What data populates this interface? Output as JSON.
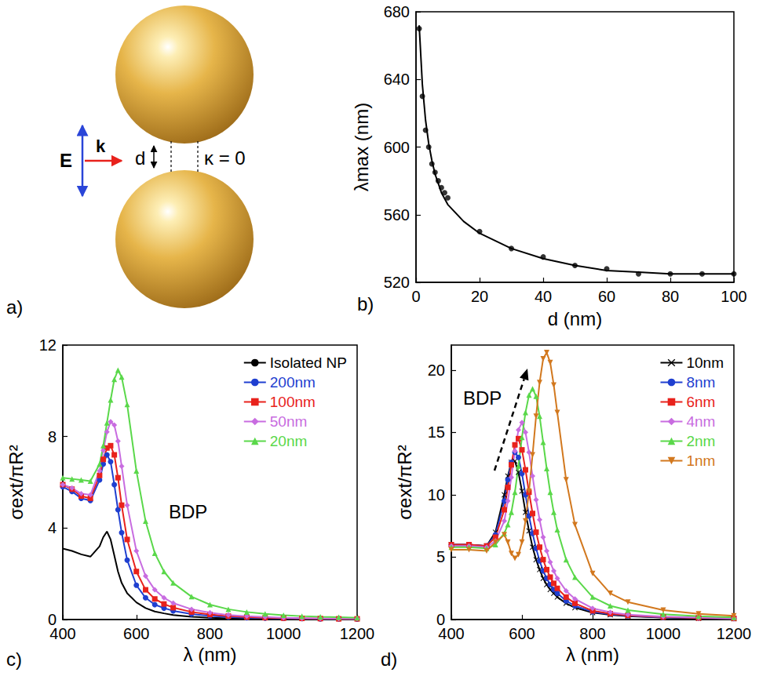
{
  "diagram": {
    "panel": "a)",
    "field": "E",
    "wavevector": "k",
    "gap": "d",
    "plane": "κ = 0"
  },
  "chart_data": [
    {
      "type": "scatter",
      "panel": "b)",
      "x_label": "d (nm)",
      "y_label": "λmax (nm)",
      "xlim": [
        0,
        100
      ],
      "ylim": [
        520,
        680
      ],
      "xticks": [
        0,
        20,
        40,
        60,
        80,
        100
      ],
      "yticks": [
        520,
        560,
        600,
        640,
        680
      ],
      "grid": false,
      "series": [
        {
          "type": "scatter",
          "marker": "circle",
          "color": "#000000",
          "x": [
            1,
            2,
            3,
            4,
            5,
            6,
            7,
            8,
            9,
            10,
            20,
            30,
            40,
            50,
            60,
            70,
            80,
            90,
            100
          ],
          "values": [
            670,
            630,
            610,
            600,
            590,
            585,
            580,
            576,
            573,
            570,
            550,
            540,
            535,
            530,
            528,
            525,
            525,
            525,
            525
          ]
        },
        {
          "type": "line",
          "marker": "none",
          "color": "#000000",
          "x": [
            1,
            2,
            3,
            4,
            5,
            6,
            8,
            10,
            15,
            20,
            30,
            40,
            50,
            60,
            70,
            80,
            90,
            100
          ],
          "values": [
            672,
            637,
            616,
            602,
            592,
            584,
            573,
            566,
            556,
            549,
            540,
            534,
            530,
            527,
            526,
            525,
            525,
            525
          ]
        }
      ]
    },
    {
      "type": "line",
      "panel": "c)",
      "x_label": "λ (nm)",
      "y_label": "σext/πR²",
      "annotations": [
        "BDP"
      ],
      "xlim": [
        400,
        1200
      ],
      "ylim": [
        0,
        12
      ],
      "xticks": [
        400,
        600,
        800,
        1000,
        1200
      ],
      "yticks": [
        0,
        4,
        8,
        12
      ],
      "grid": false,
      "legend": "upper right",
      "x": [
        400,
        425,
        450,
        475,
        500,
        510,
        520,
        530,
        540,
        550,
        560,
        575,
        600,
        625,
        650,
        675,
        700,
        750,
        800,
        850,
        900,
        950,
        1000,
        1050,
        1100,
        1150,
        1200
      ],
      "series": [
        {
          "name": "Isolated NP",
          "color": "#000000",
          "marker": "none",
          "values": [
            3.1,
            3.0,
            2.85,
            2.75,
            3.2,
            3.6,
            3.85,
            3.5,
            2.8,
            2.1,
            1.6,
            1.15,
            0.75,
            0.5,
            0.35,
            0.27,
            0.2,
            0.12,
            0.08,
            0.05,
            0.04,
            0.03,
            0.02,
            0.02,
            0.01,
            0.01,
            0.01
          ]
        },
        {
          "name": "200nm",
          "color": "#1f3fd0",
          "marker": "circle",
          "values": [
            5.8,
            5.6,
            5.3,
            5.2,
            6.1,
            6.8,
            7.2,
            6.9,
            5.9,
            4.8,
            3.8,
            2.6,
            1.5,
            0.95,
            0.65,
            0.5,
            0.38,
            0.24,
            0.16,
            0.11,
            0.08,
            0.06,
            0.05,
            0.04,
            0.03,
            0.03,
            0.02
          ]
        },
        {
          "name": "100nm",
          "color": "#e8221c",
          "marker": "square",
          "values": [
            5.9,
            5.7,
            5.4,
            5.3,
            6.3,
            7.0,
            7.5,
            7.6,
            7.2,
            6.2,
            5.0,
            3.5,
            2.1,
            1.3,
            0.9,
            0.68,
            0.52,
            0.33,
            0.22,
            0.15,
            0.11,
            0.08,
            0.06,
            0.05,
            0.04,
            0.03,
            0.03
          ]
        },
        {
          "name": "50nm",
          "color": "#c86ce0",
          "marker": "diamond",
          "values": [
            5.9,
            5.75,
            5.5,
            5.45,
            6.5,
            7.4,
            8.2,
            8.65,
            8.5,
            7.8,
            6.7,
            5.0,
            3.0,
            1.9,
            1.3,
            0.95,
            0.72,
            0.45,
            0.3,
            0.2,
            0.15,
            0.11,
            0.08,
            0.06,
            0.05,
            0.04,
            0.04
          ]
        },
        {
          "name": "20nm",
          "color": "#5ad84a",
          "marker": "triangle",
          "values": [
            6.2,
            6.15,
            6.1,
            6.05,
            6.8,
            7.6,
            8.6,
            9.6,
            10.5,
            10.9,
            10.6,
            9.4,
            6.5,
            4.3,
            2.9,
            2.1,
            1.6,
            1.0,
            0.65,
            0.45,
            0.33,
            0.25,
            0.19,
            0.15,
            0.12,
            0.1,
            0.08
          ]
        }
      ]
    },
    {
      "type": "line",
      "panel": "d)",
      "x_label": "λ (nm)",
      "y_label": "σext/πR²",
      "annotations": [
        "BDP"
      ],
      "xlim": [
        400,
        1200
      ],
      "ylim": [
        0,
        22
      ],
      "xticks": [
        400,
        600,
        800,
        1000,
        1200
      ],
      "yticks": [
        0,
        5,
        10,
        15,
        20
      ],
      "grid": false,
      "legend": "upper right",
      "x": [
        400,
        450,
        500,
        525,
        550,
        560,
        570,
        580,
        590,
        600,
        610,
        620,
        630,
        640,
        650,
        660,
        670,
        680,
        690,
        700,
        725,
        750,
        800,
        850,
        900,
        1000,
        1100,
        1200
      ],
      "series": [
        {
          "name": "10nm",
          "color": "#000000",
          "marker": "x",
          "values": [
            6.0,
            6.0,
            5.9,
            7.0,
            10.0,
            11.5,
            12.6,
            12.7,
            11.8,
            10.3,
            8.6,
            7.1,
            5.8,
            4.8,
            4.0,
            3.3,
            2.8,
            2.4,
            2.1,
            1.8,
            1.3,
            0.95,
            0.55,
            0.38,
            0.27,
            0.16,
            0.1,
            0.07
          ]
        },
        {
          "name": "8nm",
          "color": "#1f3fd0",
          "marker": "circle",
          "values": [
            6.0,
            6.0,
            5.9,
            6.8,
            9.5,
            11.2,
            12.6,
            13.4,
            13.0,
            11.7,
            10.0,
            8.3,
            6.9,
            5.7,
            4.7,
            3.9,
            3.3,
            2.8,
            2.4,
            2.1,
            1.5,
            1.1,
            0.62,
            0.42,
            0.3,
            0.18,
            0.12,
            0.08
          ]
        },
        {
          "name": "6nm",
          "color": "#e8221c",
          "marker": "square",
          "values": [
            6.0,
            6.0,
            5.9,
            6.6,
            8.8,
            10.6,
            12.4,
            14.0,
            14.5,
            13.6,
            12.0,
            10.2,
            8.5,
            7.0,
            5.8,
            4.8,
            4.0,
            3.4,
            2.9,
            2.5,
            1.8,
            1.3,
            0.7,
            0.47,
            0.33,
            0.2,
            0.13,
            0.09
          ]
        },
        {
          "name": "4nm",
          "color": "#c86ce0",
          "marker": "diamond",
          "values": [
            5.9,
            5.9,
            5.8,
            6.3,
            7.9,
            9.5,
            11.4,
            13.5,
            15.2,
            15.8,
            15.0,
            13.4,
            11.5,
            9.6,
            8.0,
            6.6,
            5.5,
            4.6,
            3.9,
            3.3,
            2.3,
            1.65,
            0.9,
            0.58,
            0.4,
            0.24,
            0.15,
            0.1
          ]
        },
        {
          "name": "2nm",
          "color": "#5ad84a",
          "marker": "triangle",
          "values": [
            5.8,
            5.8,
            5.7,
            6.0,
            6.9,
            7.6,
            8.6,
            10.2,
            12.3,
            14.6,
            16.6,
            18.0,
            18.5,
            17.9,
            16.3,
            14.2,
            12.1,
            10.2,
            8.6,
            7.2,
            4.8,
            3.4,
            1.8,
            1.1,
            0.75,
            0.42,
            0.27,
            0.18
          ]
        },
        {
          "name": "1nm",
          "color": "#d2781e",
          "marker": "triangle-down",
          "values": [
            5.6,
            5.6,
            5.5,
            6.2,
            6.8,
            6.2,
            5.3,
            4.9,
            5.2,
            6.2,
            7.9,
            10.3,
            13.2,
            16.3,
            19.0,
            20.9,
            21.4,
            20.6,
            18.8,
            16.6,
            11.2,
            7.6,
            3.7,
            2.1,
            1.4,
            0.75,
            0.45,
            0.3
          ]
        }
      ]
    }
  ]
}
